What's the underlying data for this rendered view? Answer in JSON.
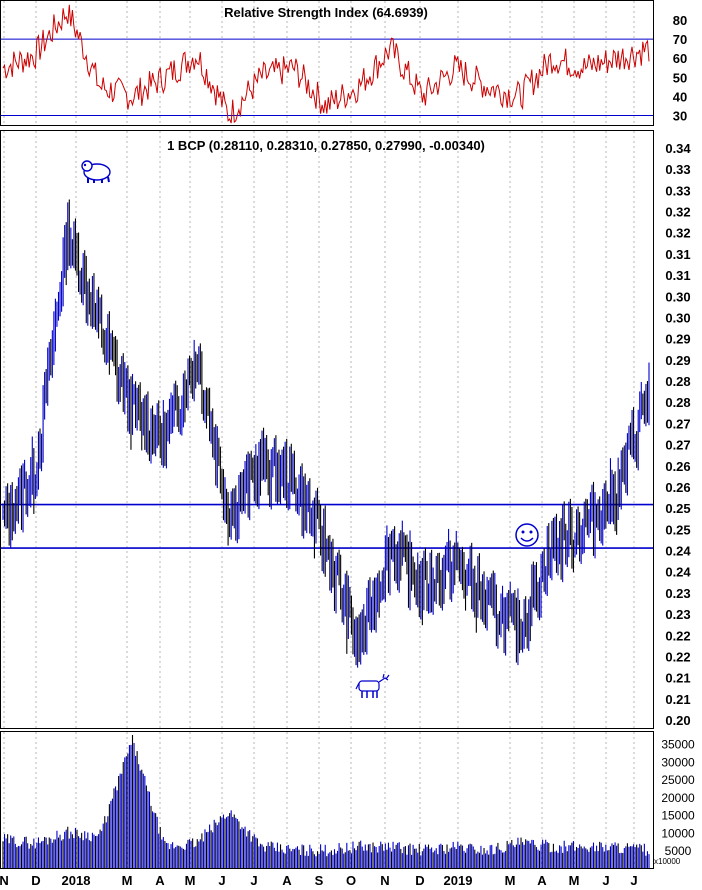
{
  "rsi_panel": {
    "title": "Relative Strength Index (64.6939)",
    "ylim": [
      25,
      90
    ],
    "ticks": [
      80,
      70,
      60,
      50,
      40,
      30
    ],
    "lines": [
      70,
      30
    ]
  },
  "price_panel": {
    "title": "1 BCP (0.28110, 0.28310, 0.27850, 0.27990, -0.00340)",
    "ylim": [
      0.2,
      0.34
    ],
    "ticks": [
      "0.34",
      "0.33",
      "0.33",
      "0.32",
      "0.32",
      "0.31",
      "0.31",
      "0.30",
      "0.30",
      "0.29",
      "0.29",
      "0.28",
      "0.28",
      "0.27",
      "0.27",
      "0.26",
      "0.26",
      "0.25",
      "0.25",
      "0.24",
      "0.24",
      "0.23",
      "0.23",
      "0.22",
      "0.22",
      "0.21",
      "0.21",
      "0.20"
    ],
    "hlines": [
      0.252,
      0.2415
    ]
  },
  "volume_panel": {
    "ticks": [
      35000,
      30000,
      25000,
      20000,
      15000,
      10000,
      5000
    ],
    "ylim": [
      0,
      36000
    ],
    "multiplier_label": "x10000"
  },
  "x_axis": {
    "labels": [
      "N",
      "D",
      "2018",
      "M",
      "A",
      "M",
      "J",
      "J",
      "A",
      "S",
      "O",
      "N",
      "D",
      "2019",
      "M",
      "A",
      "M",
      "J",
      "J"
    ]
  },
  "chart_data": {
    "type": "ohlc",
    "panels": [
      "rsi",
      "price",
      "volume"
    ],
    "rsi_series": [
      {
        "x": "Nov 2017",
        "y": 55
      },
      {
        "x": "Dec 2017",
        "y": 62
      },
      {
        "x": "Jan 2018",
        "y": 85
      },
      {
        "x": "Feb 2018",
        "y": 45
      },
      {
        "x": "Mar 2018",
        "y": 40
      },
      {
        "x": "Apr 2018",
        "y": 50
      },
      {
        "x": "May 2018",
        "y": 62
      },
      {
        "x": "Jun 2018",
        "y": 30
      },
      {
        "x": "Jul 2018",
        "y": 50
      },
      {
        "x": "Aug 2018",
        "y": 55
      },
      {
        "x": "Sep 2018",
        "y": 35
      },
      {
        "x": "Oct 2018",
        "y": 45
      },
      {
        "x": "Nov 2018",
        "y": 65
      },
      {
        "x": "Dec 2018",
        "y": 40
      },
      {
        "x": "Jan 2019",
        "y": 55
      },
      {
        "x": "Feb 2019",
        "y": 45
      },
      {
        "x": "Mar 2019",
        "y": 40
      },
      {
        "x": "Apr 2019",
        "y": 60
      },
      {
        "x": "May 2019",
        "y": 55
      },
      {
        "x": "Jun 2019",
        "y": 60
      },
      {
        "x": "Jul 2019",
        "y": 65
      }
    ],
    "price_series": [
      {
        "x": "Nov 2017",
        "y": 0.248
      },
      {
        "x": "Dec 2017",
        "y": 0.26
      },
      {
        "x": "Jan 2018",
        "y": 0.318
      },
      {
        "x": "Feb 2018",
        "y": 0.295
      },
      {
        "x": "Mar 2018",
        "y": 0.275
      },
      {
        "x": "Apr 2018",
        "y": 0.268
      },
      {
        "x": "May 2018",
        "y": 0.288
      },
      {
        "x": "Jun 2018",
        "y": 0.25
      },
      {
        "x": "Jul 2018",
        "y": 0.262
      },
      {
        "x": "Aug 2018",
        "y": 0.258
      },
      {
        "x": "Sep 2018",
        "y": 0.242
      },
      {
        "x": "Oct 2018",
        "y": 0.218
      },
      {
        "x": "Nov 2018",
        "y": 0.242
      },
      {
        "x": "Dec 2018",
        "y": 0.232
      },
      {
        "x": "Jan 2019",
        "y": 0.238
      },
      {
        "x": "Feb 2019",
        "y": 0.228
      },
      {
        "x": "Mar 2019",
        "y": 0.222
      },
      {
        "x": "Apr 2019",
        "y": 0.242
      },
      {
        "x": "May 2019",
        "y": 0.247
      },
      {
        "x": "Jun 2019",
        "y": 0.255
      },
      {
        "x": "Jul 2019",
        "y": 0.2799
      }
    ],
    "price_ohlc_last": {
      "open": 0.2811,
      "high": 0.2831,
      "low": 0.2785,
      "close": 0.2799,
      "change": -0.0034
    },
    "volume_series": [
      {
        "x": "Nov 2017",
        "y": 8000
      },
      {
        "x": "Dec 2017",
        "y": 7000
      },
      {
        "x": "Jan 2018",
        "y": 10000
      },
      {
        "x": "Feb 2018",
        "y": 9000
      },
      {
        "x": "Mar 2018",
        "y": 36000
      },
      {
        "x": "Apr 2018",
        "y": 6000
      },
      {
        "x": "May 2018",
        "y": 7000
      },
      {
        "x": "Jun 2018",
        "y": 16000
      },
      {
        "x": "Jul 2018",
        "y": 6000
      },
      {
        "x": "Aug 2018",
        "y": 5000
      },
      {
        "x": "Sep 2018",
        "y": 5000
      },
      {
        "x": "Oct 2018",
        "y": 6000
      },
      {
        "x": "Nov 2018",
        "y": 6000
      },
      {
        "x": "Dec 2018",
        "y": 5000
      },
      {
        "x": "Jan 2019",
        "y": 6000
      },
      {
        "x": "Feb 2019",
        "y": 5000
      },
      {
        "x": "Mar 2019",
        "y": 7000
      },
      {
        "x": "Apr 2019",
        "y": 6000
      },
      {
        "x": "May 2019",
        "y": 6000
      },
      {
        "x": "Jun 2019",
        "y": 6000
      },
      {
        "x": "Jul 2019",
        "y": 5000
      }
    ],
    "markers": [
      {
        "kind": "bear-icon",
        "at": "Jan 2018 high"
      },
      {
        "kind": "bull-icon",
        "at": "Oct 2018 low"
      },
      {
        "kind": "smiley-icon",
        "at": "Mar 2019 breakout"
      }
    ],
    "colors": {
      "up": "#0000cc",
      "down": "#000000",
      "rsi": "#cc0000",
      "grid": "#888888",
      "hline": "#0000cc"
    }
  }
}
